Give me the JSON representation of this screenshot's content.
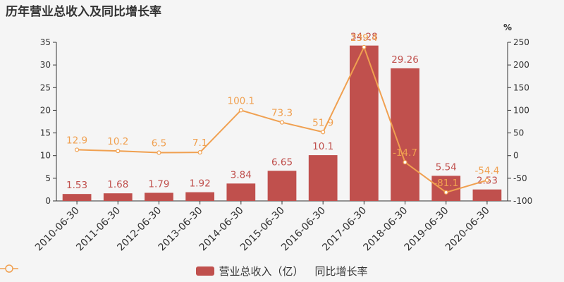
{
  "chart_data": {
    "type": "bar",
    "title": "历年营业总收入及同比增长率",
    "y2_unit": "%",
    "categories": [
      "2010-06-30",
      "2011-06-30",
      "2012-06-30",
      "2013-06-30",
      "2014-06-30",
      "2015-06-30",
      "2016-06-30",
      "2017-06-30",
      "2018-06-30",
      "2019-06-30",
      "2020-06-30"
    ],
    "series": [
      {
        "name": "营业总收入（亿）",
        "type": "bar",
        "axis": "left",
        "color": "#c0504d",
        "values": [
          1.53,
          1.68,
          1.79,
          1.92,
          3.84,
          6.65,
          10.1,
          34.28,
          29.26,
          5.54,
          2.53
        ],
        "labels": [
          "1.53",
          "1.68",
          "1.79",
          "1.92",
          "3.84",
          "6.65",
          "10.1",
          "34.28",
          "29.26",
          "5.54",
          "2.53"
        ]
      },
      {
        "name": "同比增长率",
        "type": "line",
        "axis": "right",
        "color": "#f0a050",
        "values": [
          12.9,
          10.2,
          6.5,
          7.1,
          100.1,
          73.3,
          51.9,
          239.4,
          -14.7,
          -81.1,
          -54.4
        ],
        "labels": [
          "12.9",
          "10.2",
          "6.5",
          "7.1",
          "100.1",
          "73.3",
          "51.9",
          "239.4",
          "-14.7",
          "-81.1",
          "-54.4"
        ]
      }
    ],
    "ylim": [
      0,
      35
    ],
    "yticks": [
      "0",
      "5",
      "10",
      "15",
      "20",
      "25",
      "30",
      "35"
    ],
    "y2lim": [
      -100,
      250
    ],
    "y2ticks": [
      "-100",
      "-50",
      "0",
      "50",
      "100",
      "150",
      "200",
      "250"
    ],
    "grid": false,
    "legend_position": "bottom-center"
  }
}
